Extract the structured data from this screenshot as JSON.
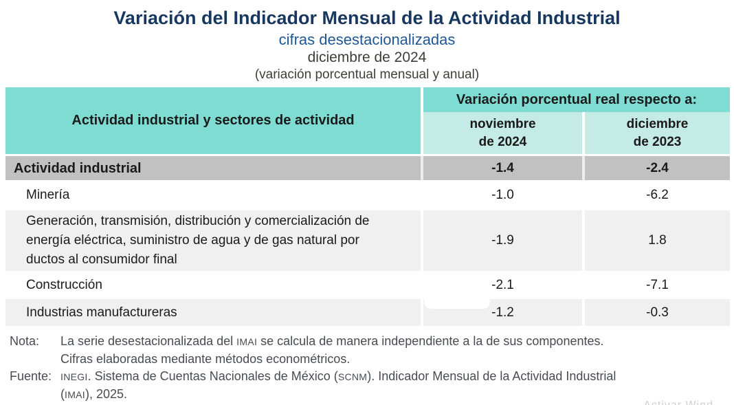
{
  "header": {
    "title": "Variación del Indicador Mensual de la Actividad Industrial",
    "subtitle": "cifras desestacionalizadas",
    "period": "diciembre de 2024",
    "caption": "(variación porcentual mensual y anual)"
  },
  "colors": {
    "title_navy": "#17375E",
    "subtitle_blue": "#1F5795",
    "header_teal": "#7EDCD3",
    "subheader_teal": "#C4EBE6",
    "total_row_gray": "#C1C1C1",
    "alt_row_gray": "#F0F0F0",
    "notes_gray": "#474B52"
  },
  "table": {
    "col_header": "Actividad industrial y sectores de actividad",
    "group_header": "Variación porcentual real respecto a:",
    "columns": [
      {
        "line1": "noviembre",
        "line2": "de 2024"
      },
      {
        "line1": "diciembre",
        "line2": "de 2023"
      }
    ],
    "rows": [
      {
        "label": "Actividad industrial",
        "nov": "-1.4",
        "dic": "-2.4"
      },
      {
        "label": "Minería",
        "nov": "-1.0",
        "dic": "-6.2"
      },
      {
        "label": "Generación, transmisión, distribución y comercialización de energía eléctrica, suministro de agua y de gas natural por ductos al consumidor final",
        "nov": "-1.9",
        "dic": "1.8"
      },
      {
        "label": "Construcción",
        "nov": "-2.1",
        "dic": "-7.1"
      },
      {
        "label": "Industrias manufactureras",
        "nov": "-1.2",
        "dic": "-0.3"
      }
    ]
  },
  "notes": {
    "nota_label": "Nota:",
    "nota_seg1": "La serie desestacionalizada del ",
    "nota_acronym1": "IMAI",
    "nota_seg2": " se calcula de manera independiente a la de sus componentes.",
    "nota_line2": "Cifras elaboradas mediante métodos econométricos.",
    "fuente_label": "Fuente:",
    "fuente_acronym1": "INEGI",
    "fuente_seg1": ". Sistema de Cuentas Nacionales de México (",
    "fuente_acronym2": "SCNM",
    "fuente_seg2": "). Indicador Mensual de la Actividad Industrial",
    "fuente_line2_open": "(",
    "fuente_acronym3": "IMAI",
    "fuente_line2_close": "), 2025."
  },
  "watermark": "Activar Wind"
}
